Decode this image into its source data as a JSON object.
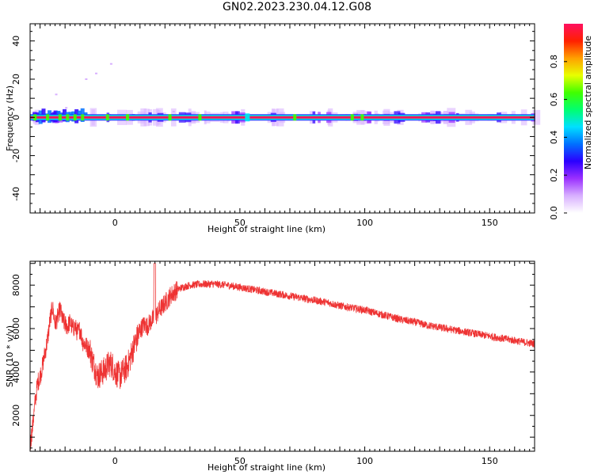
{
  "title": "GN02.2023.230.04.12.G08",
  "chart_data": [
    {
      "type": "heatmap",
      "xlabel": "Height of straight line (km)",
      "ylabel": "Frequency (Hz)",
      "xlim": [
        -34,
        168
      ],
      "ylim": [
        -50,
        49
      ],
      "xticks": [
        0,
        50,
        100,
        150
      ],
      "yticks": [
        -40,
        -20,
        0,
        20,
        40
      ],
      "ridge_frequency": 0,
      "colorbar": {
        "label": "Normalized spectral amplitude",
        "range": [
          0,
          1
        ],
        "ticks": [
          "0.0",
          "0.2",
          "0.4",
          "0.6",
          "0.8"
        ],
        "colors": [
          "#ffffff",
          "#d8b0ff",
          "#9b30ff",
          "#2b00ff",
          "#0070ff",
          "#00e0ff",
          "#00ff70",
          "#40ff00",
          "#e8ff00",
          "#ffa000",
          "#ff2000",
          "#ff1060"
        ]
      },
      "grid": false
    },
    {
      "type": "line",
      "xlabel": "Height of straight line (km)",
      "ylabel": "SNR (10 * v/v)",
      "xlim": [
        -34,
        168
      ],
      "ylim": [
        350,
        9100
      ],
      "xticks": [
        0,
        50,
        100,
        150
      ],
      "yticks": [
        2000,
        4000,
        6000,
        8000
      ],
      "color": "#ee3333",
      "points": [
        [
          -34,
          600
        ],
        [
          -33,
          1500
        ],
        [
          -32,
          2600
        ],
        [
          -31,
          3500
        ],
        [
          -30,
          3800
        ],
        [
          -29,
          4300
        ],
        [
          -28,
          4900
        ],
        [
          -27,
          5500
        ],
        [
          -26,
          6400
        ],
        [
          -25,
          7000
        ],
        [
          -24,
          6200
        ],
        [
          -23,
          6500
        ],
        [
          -22,
          6900
        ],
        [
          -21,
          6400
        ],
        [
          -20,
          6200
        ],
        [
          -19,
          6100
        ],
        [
          -18,
          6300
        ],
        [
          -17,
          6000
        ],
        [
          -16,
          6100
        ],
        [
          -15,
          5800
        ],
        [
          -14,
          6000
        ],
        [
          -13,
          5400
        ],
        [
          -12,
          5300
        ],
        [
          -11,
          5100
        ],
        [
          -10,
          5000
        ],
        [
          -9,
          4500
        ],
        [
          -8,
          4200
        ],
        [
          -7,
          3800
        ],
        [
          -6,
          3900
        ],
        [
          -5,
          4000
        ],
        [
          -4,
          4100
        ],
        [
          -3,
          4300
        ],
        [
          -2,
          4400
        ],
        [
          -1,
          4300
        ],
        [
          0,
          4000
        ],
        [
          1,
          3900
        ],
        [
          2,
          3800
        ],
        [
          3,
          4000
        ],
        [
          4,
          4100
        ],
        [
          5,
          4300
        ],
        [
          6,
          4600
        ],
        [
          7,
          5000
        ],
        [
          8,
          5300
        ],
        [
          9,
          5600
        ],
        [
          10,
          5900
        ],
        [
          11,
          6100
        ],
        [
          12,
          6200
        ],
        [
          13,
          6100
        ],
        [
          14,
          6300
        ],
        [
          15,
          6400
        ],
        [
          16,
          6500
        ],
        [
          17,
          6700
        ],
        [
          18,
          6900
        ],
        [
          19,
          7000
        ],
        [
          20,
          7200
        ],
        [
          21,
          7300
        ],
        [
          22,
          7500
        ],
        [
          23,
          7600
        ],
        [
          24,
          7700
        ],
        [
          25,
          7800
        ],
        [
          27,
          7900
        ],
        [
          30,
          8000
        ],
        [
          35,
          8050
        ],
        [
          40,
          8050
        ],
        [
          45,
          8000
        ],
        [
          50,
          7900
        ],
        [
          55,
          7800
        ],
        [
          60,
          7700
        ],
        [
          65,
          7600
        ],
        [
          70,
          7500
        ],
        [
          75,
          7400
        ],
        [
          80,
          7300
        ],
        [
          85,
          7200
        ],
        [
          90,
          7050
        ],
        [
          95,
          6950
        ],
        [
          100,
          6850
        ],
        [
          105,
          6700
        ],
        [
          110,
          6550
        ],
        [
          115,
          6400
        ],
        [
          120,
          6300
        ],
        [
          125,
          6150
        ],
        [
          130,
          6050
        ],
        [
          135,
          5950
        ],
        [
          140,
          5850
        ],
        [
          145,
          5750
        ],
        [
          150,
          5650
        ],
        [
          155,
          5550
        ],
        [
          160,
          5450
        ],
        [
          165,
          5350
        ],
        [
          168,
          5300
        ]
      ],
      "grid": false
    }
  ]
}
